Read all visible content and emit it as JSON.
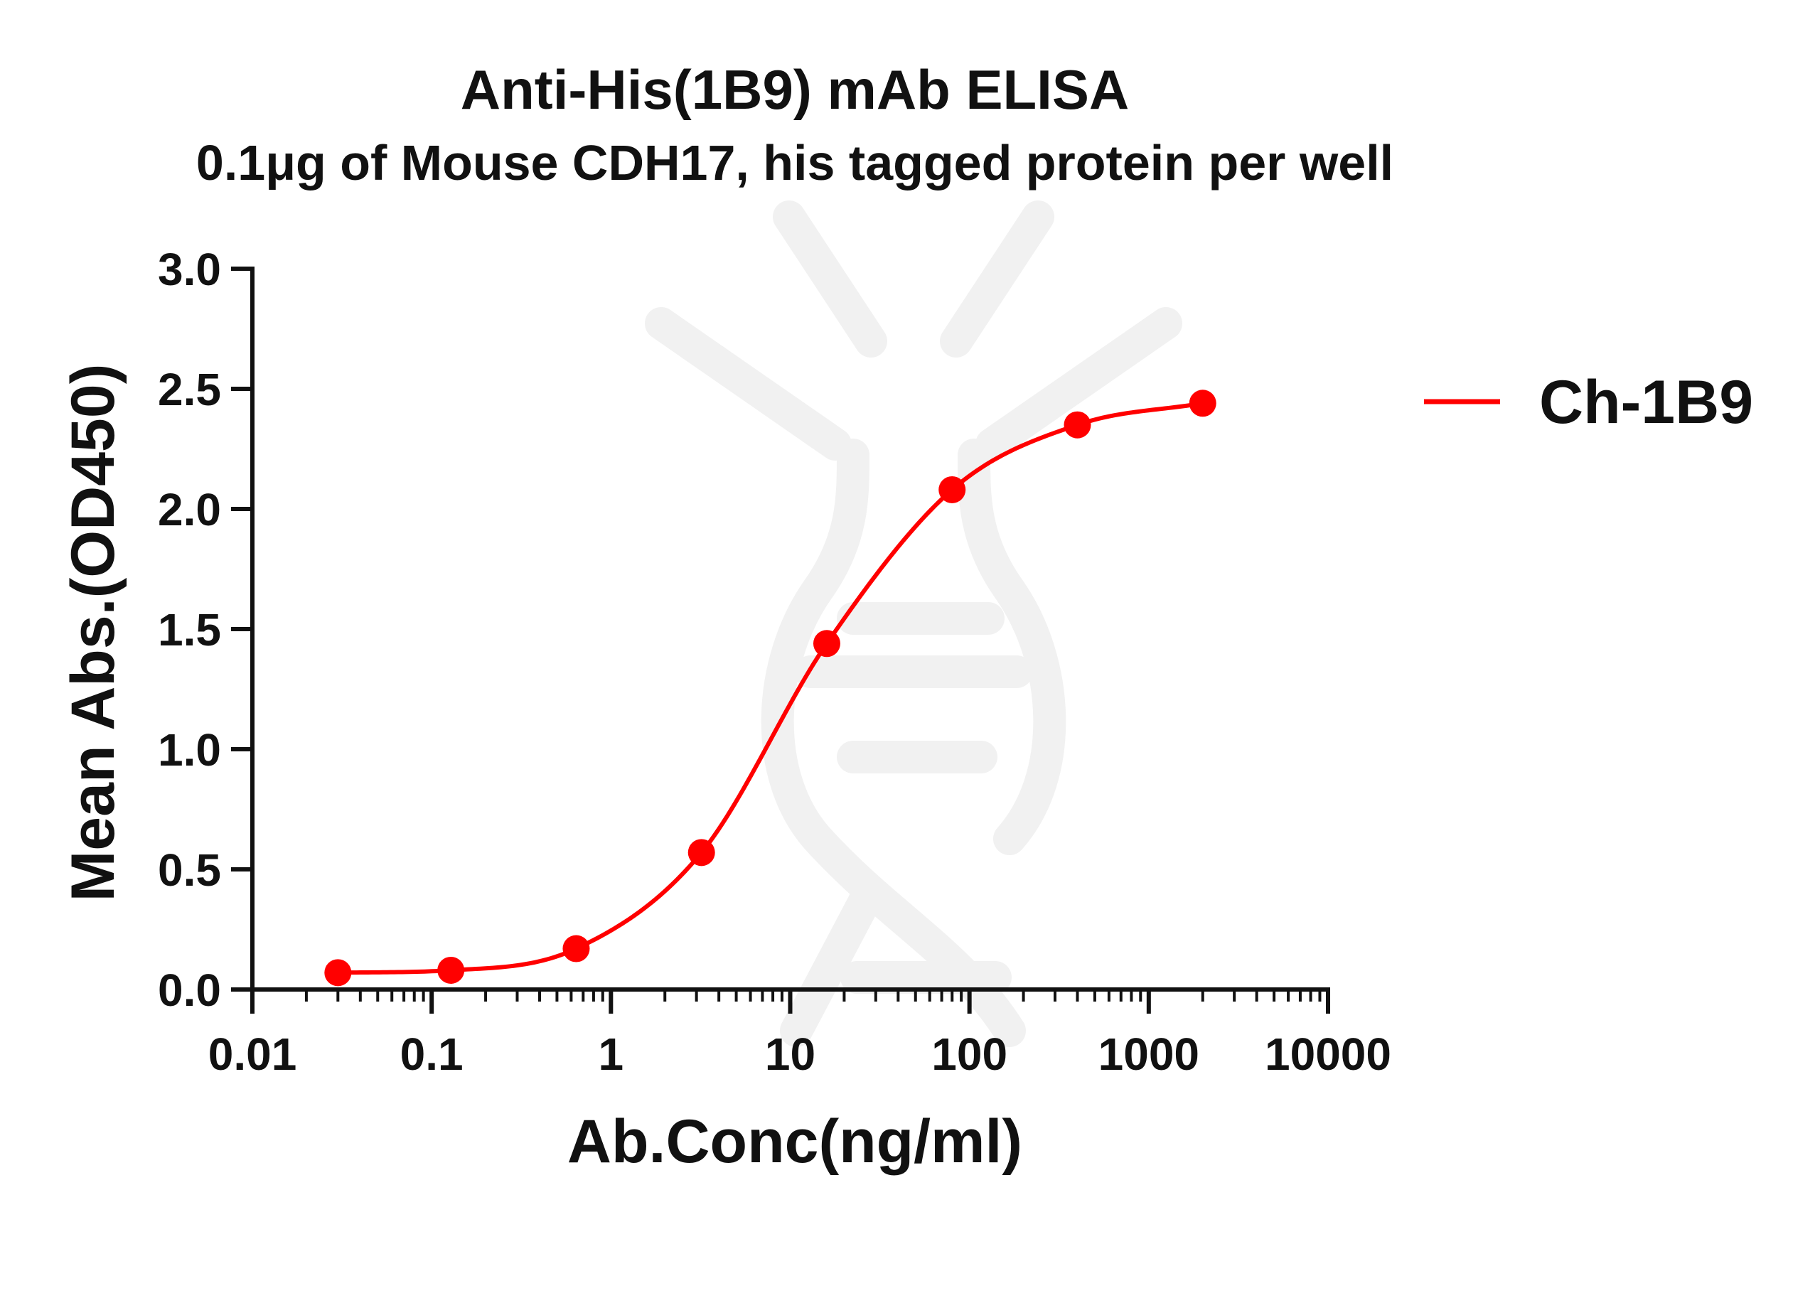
{
  "chart_data": {
    "type": "scatter",
    "title": "Anti-His(1B9) mAb ELISA",
    "subtitle": "0.1μg of Mouse CDH17, his tagged protein per well",
    "xlabel": "Ab.Conc(ng/ml)",
    "ylabel": "Mean Abs.(OD450)",
    "x_scale": "log",
    "xlim": [
      0.01,
      10000
    ],
    "ylim": [
      0,
      3.0
    ],
    "x_ticks": [
      0.01,
      0.1,
      1,
      10,
      100,
      1000,
      10000
    ],
    "x_tick_labels": [
      "0.01",
      "0.1",
      "1",
      "10",
      "100",
      "1000",
      "10000"
    ],
    "y_ticks": [
      0,
      0.5,
      1.0,
      1.5,
      2.0,
      2.5,
      3.0
    ],
    "y_tick_labels": [
      "0.0",
      "0.5",
      "1.0",
      "1.5",
      "2.0",
      "2.5",
      "3.0"
    ],
    "grid": false,
    "legend_position": "right",
    "series": [
      {
        "name": "Ch-1B9",
        "color": "#ff0000",
        "fit": "sigmoidal",
        "x": [
          0.03,
          0.128,
          0.64,
          3.2,
          16,
          80,
          400,
          2000
        ],
        "y": [
          0.07,
          0.08,
          0.17,
          0.57,
          1.44,
          2.08,
          2.35,
          2.44
        ]
      }
    ]
  }
}
